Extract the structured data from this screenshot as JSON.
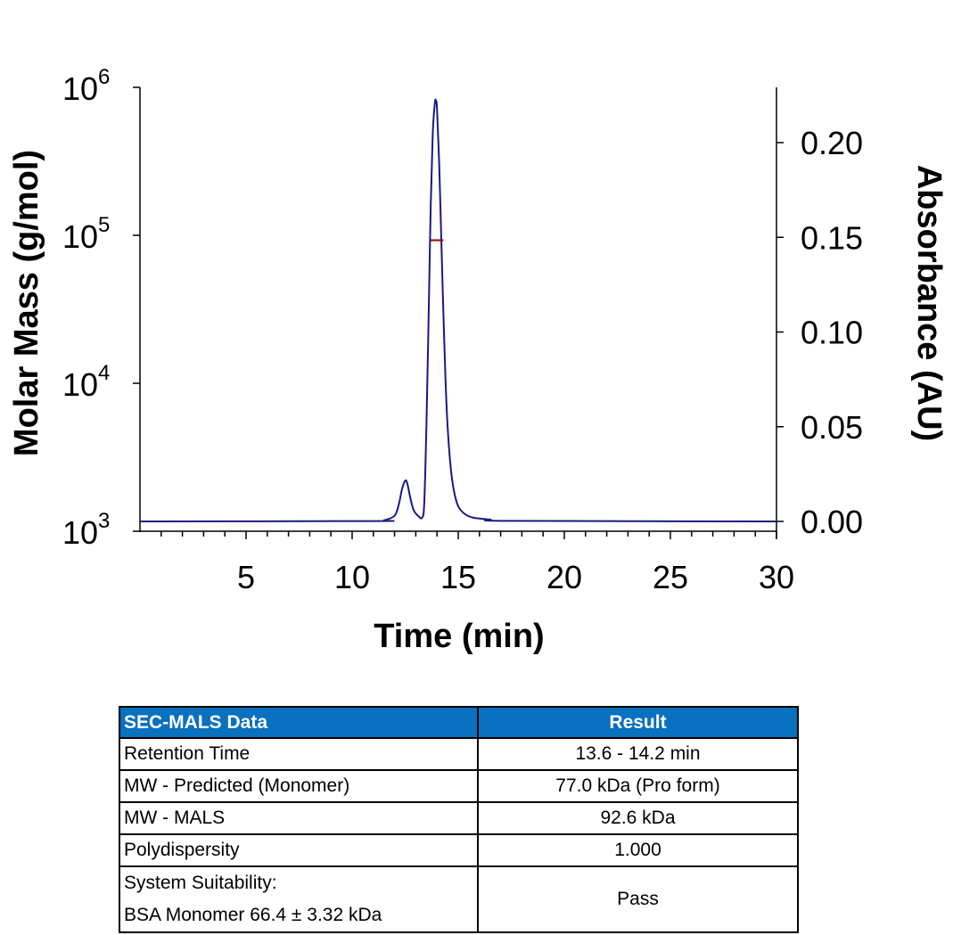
{
  "chart_data": {
    "type": "line",
    "xlabel": "Time (min)",
    "ylabel_left": "Molar Mass (g/mol)",
    "ylabel_right": "Absorbance (AU)",
    "xlim": [
      0,
      30
    ],
    "x_ticks": [
      5,
      10,
      15,
      20,
      25,
      30
    ],
    "y_left_scale": "log",
    "y_left_lim": [
      1000,
      1000000
    ],
    "y_left_ticks": [
      {
        "base": "10",
        "exp": "3"
      },
      {
        "base": "10",
        "exp": "4"
      },
      {
        "base": "10",
        "exp": "5"
      },
      {
        "base": "10",
        "exp": "6"
      }
    ],
    "y_left_tick_values": [
      1000,
      10000,
      100000,
      1000000
    ],
    "y_right_lim": [
      0,
      0.23
    ],
    "y_right_ticks": [
      "0.00",
      "0.05",
      "0.10",
      "0.15",
      "0.20"
    ],
    "y_right_tick_values": [
      0,
      0.05,
      0.1,
      0.15,
      0.2
    ],
    "grid": false,
    "series": [
      {
        "axis": "right",
        "color": "#1a1a80",
        "x": [
          0,
          11.0,
          11.5,
          12.0,
          12.2,
          12.35,
          12.5,
          12.6,
          12.75,
          12.9,
          13.1,
          13.3,
          13.4,
          13.5,
          13.6,
          13.7,
          13.8,
          13.9,
          13.95,
          14.0,
          14.1,
          14.2,
          14.3,
          14.4,
          14.5,
          14.65,
          14.8,
          15.0,
          15.3,
          15.7,
          16.5,
          17.5,
          30
        ],
        "y": [
          0,
          0.0002,
          0.0006,
          0.003,
          0.009,
          0.017,
          0.0215,
          0.02,
          0.012,
          0.006,
          0.003,
          0.002,
          0.01,
          0.05,
          0.105,
          0.165,
          0.205,
          0.221,
          0.222,
          0.218,
          0.19,
          0.15,
          0.11,
          0.075,
          0.05,
          0.028,
          0.016,
          0.008,
          0.004,
          0.002,
          0.001,
          0.0003,
          0
        ]
      },
      {
        "axis": "left",
        "color": "#a01010",
        "x": [
          13.7,
          14.3
        ],
        "y": [
          92600,
          92600
        ]
      }
    ]
  },
  "table": {
    "headers": [
      "SEC-MALS Data",
      "Result"
    ],
    "rows": [
      [
        "Retention Time",
        "13.6 - 14.2 min"
      ],
      [
        "MW - Predicted (Monomer)",
        "77.0 kDa (Pro form)"
      ],
      [
        "MW - MALS",
        "92.6 kDa"
      ],
      [
        "Polydispersity",
        "1.000"
      ]
    ],
    "last_row": {
      "label_line1": "System Suitability:",
      "label_line2": "BSA Monomer 66.4 ± 3.32 kDa",
      "value": "Pass"
    },
    "header_color": "#0a70c0"
  }
}
